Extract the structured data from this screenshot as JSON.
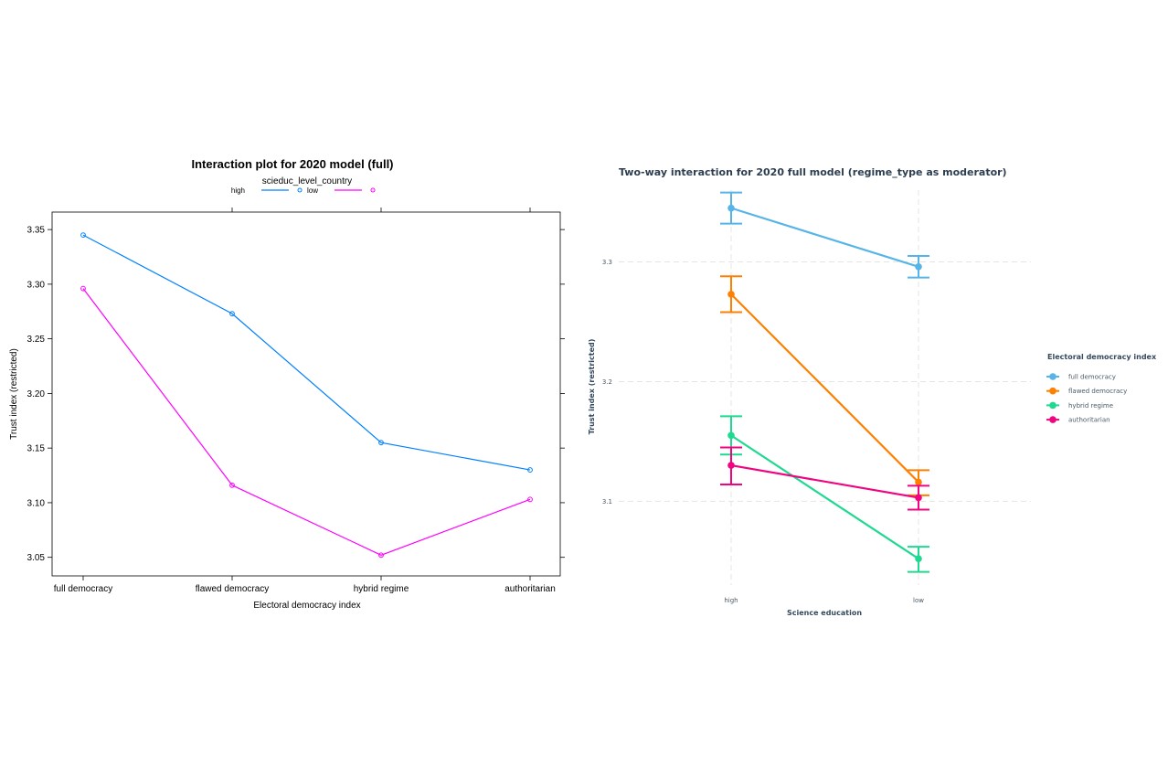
{
  "chart_data": [
    {
      "type": "line",
      "title": "Interaction plot for 2020 model (full)",
      "legend_title": "scieduc_level_country",
      "legend_position": "top",
      "xlabel": "Electoral democracy index",
      "ylabel": "Trust index (restricted)",
      "categories": [
        "full democracy",
        "flawed democracy",
        "hybrid regime",
        "authoritarian"
      ],
      "ylim": [
        3.033,
        3.366
      ],
      "yticks": [
        3.05,
        3.1,
        3.15,
        3.2,
        3.25,
        3.3,
        3.35
      ],
      "ytick_labels": [
        "3.05",
        "3.10",
        "3.15",
        "3.20",
        "3.25",
        "3.30",
        "3.35"
      ],
      "grid": false,
      "series": [
        {
          "name": "high",
          "color": "#0080ff",
          "values": [
            3.345,
            3.273,
            3.155,
            3.13
          ]
        },
        {
          "name": "low",
          "color": "#ff00ff",
          "values": [
            3.296,
            3.116,
            3.052,
            3.103
          ]
        }
      ]
    },
    {
      "type": "line",
      "title": "Two-way interaction for 2020 full model (regime_type as moderator)",
      "legend_title": "Electoral democracy index",
      "legend_position": "right",
      "xlabel": "Science education",
      "ylabel": "Trust index (restricted)",
      "categories": [
        "high",
        "low"
      ],
      "ylim": [
        3.03,
        3.36
      ],
      "yticks": [
        3.1,
        3.2,
        3.3
      ],
      "ytick_labels": [
        "3.1",
        "3.2",
        "3.3"
      ],
      "grid": true,
      "error_bars": true,
      "series": [
        {
          "name": "full democracy",
          "color": "#56b4e9",
          "values": [
            3.345,
            3.296
          ],
          "lower": [
            3.332,
            3.287
          ],
          "upper": [
            3.358,
            3.305
          ]
        },
        {
          "name": "flawed democracy",
          "color": "#ff7f00",
          "values": [
            3.273,
            3.116
          ],
          "lower": [
            3.258,
            3.105
          ],
          "upper": [
            3.288,
            3.126
          ]
        },
        {
          "name": "hybrid regime",
          "color": "#1fd991",
          "values": [
            3.155,
            3.052
          ],
          "lower": [
            3.139,
            3.041
          ],
          "upper": [
            3.171,
            3.062
          ]
        },
        {
          "name": "authoritarian",
          "color": "#f0047f",
          "values": [
            3.13,
            3.103
          ],
          "lower": [
            3.114,
            3.093
          ],
          "upper": [
            3.145,
            3.113
          ]
        }
      ]
    }
  ]
}
